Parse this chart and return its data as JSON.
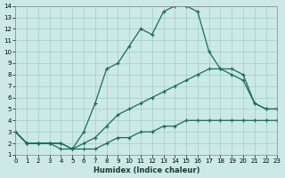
{
  "xlabel": "Humidex (Indice chaleur)",
  "bg_color": "#cce9e6",
  "grid_color": "#9dceca",
  "line_color": "#1a6b5a",
  "xlim": [
    0,
    23
  ],
  "ylim": [
    1,
    14
  ],
  "xticks": [
    0,
    1,
    2,
    3,
    4,
    5,
    6,
    7,
    8,
    9,
    10,
    11,
    12,
    13,
    14,
    15,
    16,
    17,
    18,
    19,
    20,
    21,
    22,
    23
  ],
  "yticks": [
    1,
    2,
    3,
    4,
    5,
    6,
    7,
    8,
    9,
    10,
    11,
    12,
    13,
    14
  ],
  "line1_x": [
    0,
    1,
    2,
    3,
    4,
    5,
    6,
    7,
    8,
    9,
    10,
    11,
    12,
    13,
    14,
    15,
    16,
    17,
    18,
    19,
    20,
    21,
    22,
    23
  ],
  "line1_y": [
    3,
    2,
    2,
    2,
    2,
    1.5,
    1.5,
    1.5,
    2,
    2.5,
    2.5,
    3,
    3,
    3.5,
    3.5,
    4,
    4,
    4,
    4,
    4,
    4,
    4,
    4,
    4
  ],
  "line2_x": [
    0,
    1,
    2,
    3,
    4,
    5,
    6,
    7,
    8,
    9,
    10,
    11,
    12,
    13,
    14,
    15,
    16,
    17,
    18,
    19,
    20,
    21,
    22,
    23
  ],
  "line2_y": [
    3,
    2,
    2,
    2,
    2,
    1.5,
    2,
    2.5,
    3.5,
    4.5,
    5,
    5.5,
    6,
    6.5,
    7,
    7.5,
    8,
    8.5,
    8.5,
    8,
    7.5,
    5.5,
    5,
    5
  ],
  "line3_x": [
    0,
    1,
    2,
    3,
    4,
    5,
    6,
    7,
    8,
    9,
    10,
    11,
    12,
    13,
    14,
    15,
    16,
    17,
    18,
    19,
    20,
    21,
    22,
    23
  ],
  "line3_y": [
    3,
    2,
    2,
    2,
    1.5,
    1.5,
    3,
    5.5,
    8.5,
    9,
    10.5,
    12,
    11.5,
    13.5,
    14,
    14,
    13.5,
    10,
    8.5,
    8.5,
    8,
    5.5,
    5,
    5
  ]
}
